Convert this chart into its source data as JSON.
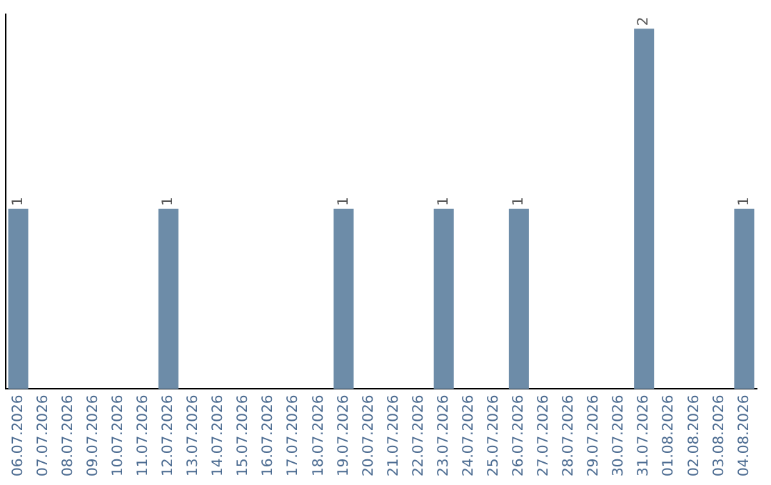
{
  "chart_data": {
    "type": "bar",
    "categories": [
      "06.07.2026",
      "07.07.2026",
      "08.07.2026",
      "09.07.2026",
      "10.07.2026",
      "11.07.2026",
      "12.07.2026",
      "13.07.2026",
      "14.07.2026",
      "15.07.2026",
      "16.07.2026",
      "17.07.2026",
      "18.07.2026",
      "19.07.2026",
      "20.07.2026",
      "21.07.2026",
      "22.07.2026",
      "23.07.2026",
      "24.07.2026",
      "25.07.2026",
      "26.07.2026",
      "27.07.2026",
      "28.07.2026",
      "29.07.2026",
      "30.07.2026",
      "31.07.2026",
      "01.08.2026",
      "02.08.2026",
      "03.08.2026",
      "04.08.2026"
    ],
    "values": [
      1,
      0,
      0,
      0,
      0,
      0,
      1,
      0,
      0,
      0,
      0,
      0,
      0,
      1,
      0,
      0,
      0,
      1,
      0,
      0,
      1,
      0,
      0,
      0,
      0,
      2,
      0,
      0,
      0,
      1
    ],
    "value_labels": [
      "1",
      null,
      null,
      null,
      null,
      null,
      "1",
      null,
      null,
      null,
      null,
      null,
      null,
      "1",
      null,
      null,
      null,
      "1",
      null,
      null,
      "1",
      null,
      null,
      null,
      null,
      "2",
      null,
      null,
      null,
      "1"
    ],
    "color": "#6d8ca8",
    "ylim": [
      0,
      2.08
    ],
    "grid": false,
    "legend": false,
    "tick_labels": "x"
  }
}
